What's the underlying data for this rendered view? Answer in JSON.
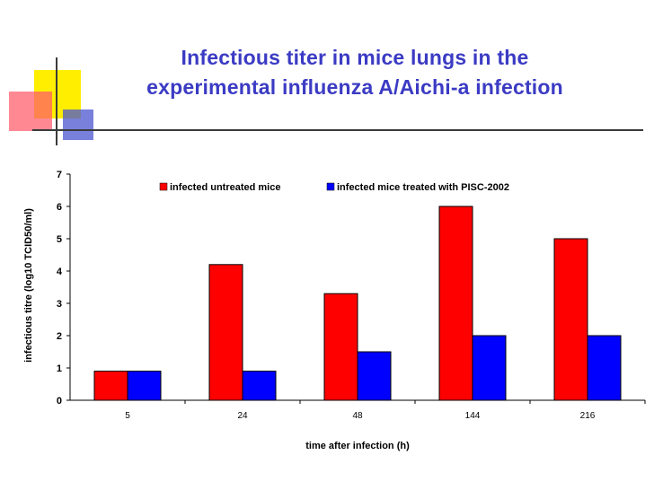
{
  "slide": {
    "title_line1": "Infectious titer in mice lungs in the",
    "title_line2": "experimental influenza A/Aichi-a infection",
    "colors": {
      "title": "#3b3bc4",
      "deco_yellow": "#ffee00",
      "deco_red": "#ff6677",
      "deco_blue": "#5a62d6",
      "rule": "#3a3a3a"
    }
  },
  "chart_data": {
    "type": "bar",
    "title": "",
    "xlabel": "time after infection (h)",
    "ylabel": "infectious titre (log10 TCID50/ml)",
    "categories": [
      "5",
      "24",
      "48",
      "144",
      "216"
    ],
    "ylim": [
      0,
      7
    ],
    "yticks": [
      "0",
      "1",
      "2",
      "3",
      "4",
      "5",
      "6",
      "7"
    ],
    "grid": false,
    "legend_position": "top-right",
    "series": [
      {
        "name": "infected untreated mice",
        "color": "#ff0000",
        "values": [
          0.9,
          4.2,
          3.3,
          6.0,
          5.0
        ]
      },
      {
        "name": "infected mice treated with PISC-2002",
        "color": "#0000ff",
        "values": [
          0.9,
          0.9,
          1.5,
          2.0,
          2.0
        ]
      }
    ]
  }
}
